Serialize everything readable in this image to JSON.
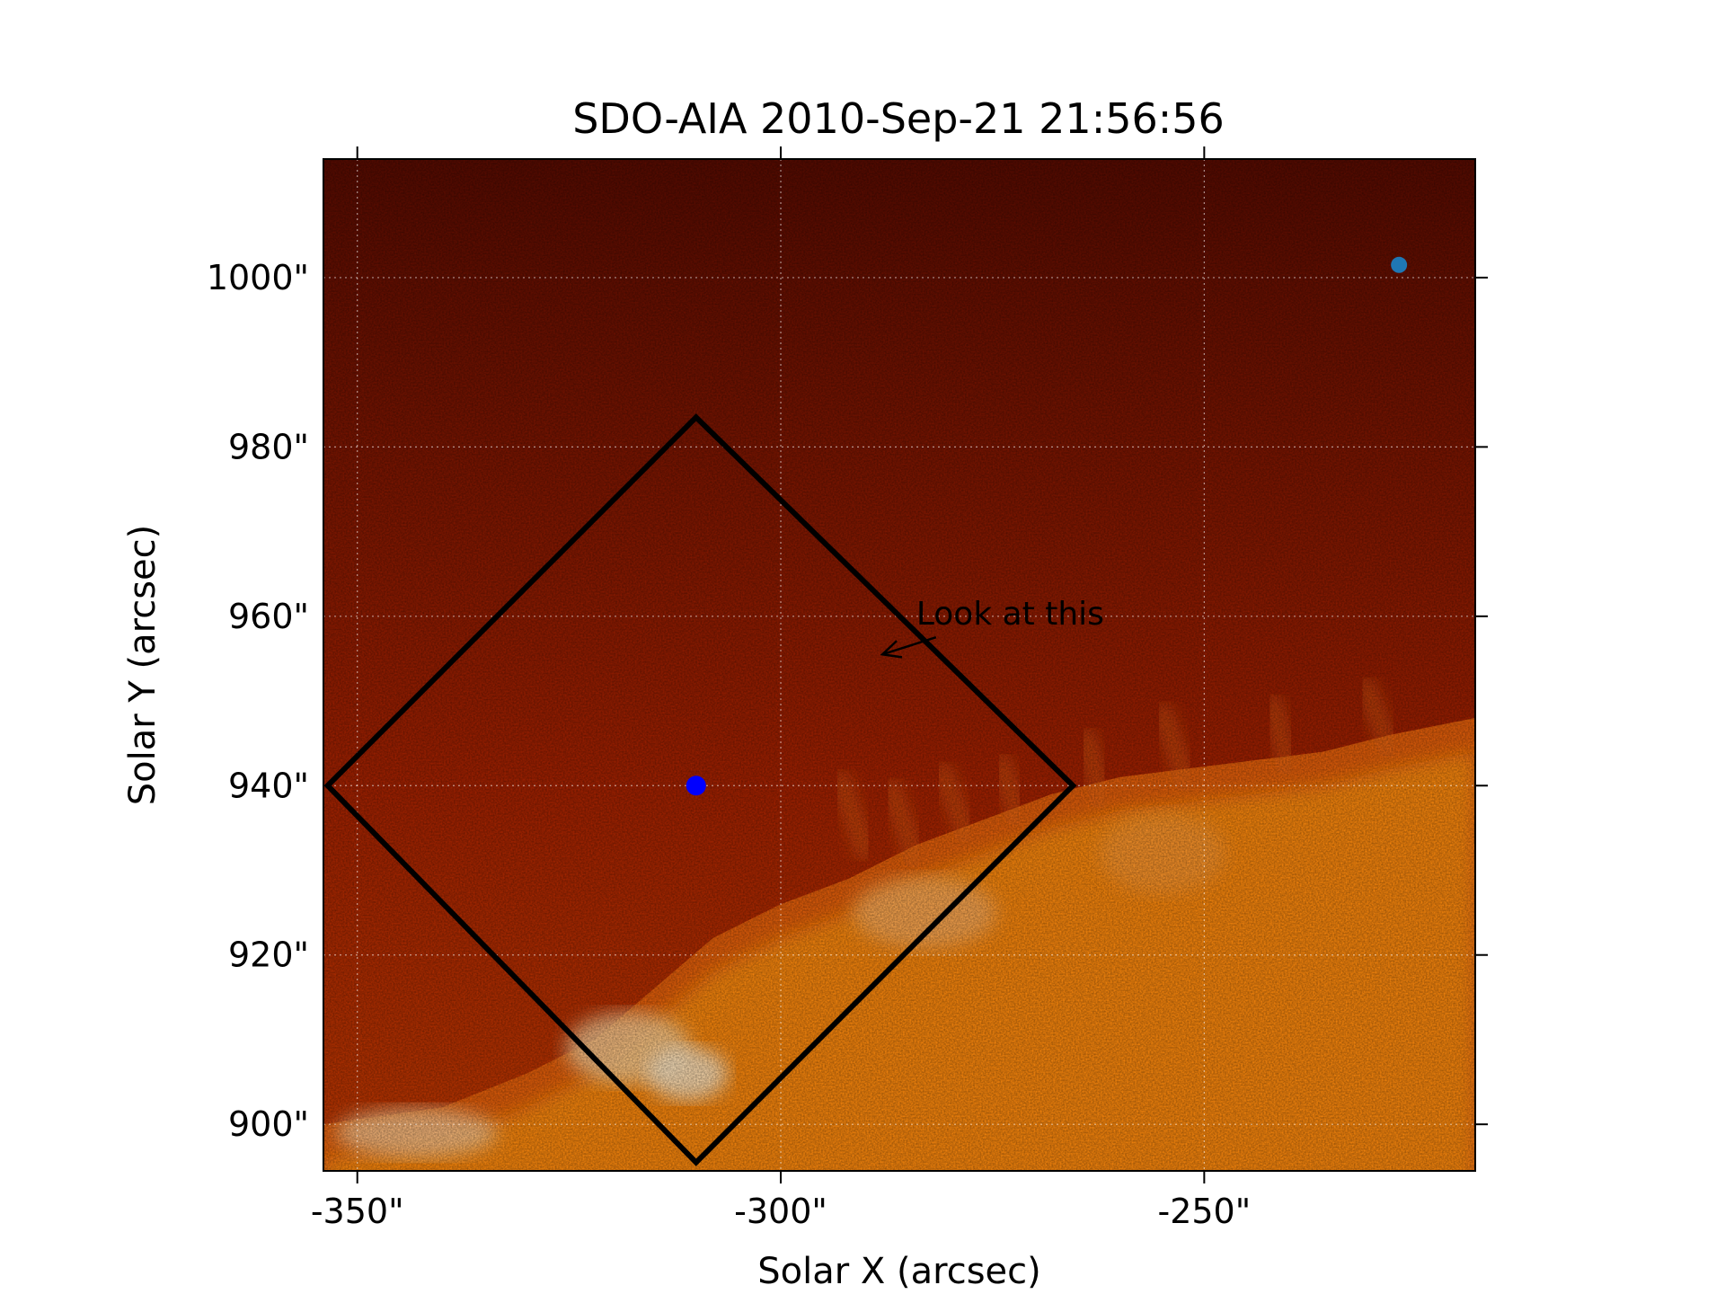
{
  "chart_data": {
    "type": "heatmap",
    "title": "SDO-AIA   2010-Sep-21 21:56:56",
    "xlabel": "Solar X (arcsec)",
    "ylabel": "Solar Y (arcsec)",
    "xlim": [
      -354,
      -218
    ],
    "ylim": [
      894.5,
      1014
    ],
    "x_ticks": [
      -350,
      -300,
      -250
    ],
    "x_tick_labels": [
      "-350\"",
      "-300\"",
      "-250\""
    ],
    "y_ticks": [
      900,
      920,
      940,
      960,
      980,
      1000
    ],
    "y_tick_labels": [
      "900\"",
      "920\"",
      "940\"",
      "960\"",
      "980\"",
      "1000\""
    ],
    "grid": true,
    "colormap": {
      "name": "sdoaia171",
      "dark": "#5a0b00",
      "mid": "#c43a00",
      "bright": "#ff8a10",
      "peak": "#fff2d8"
    },
    "markers": [
      {
        "x": -310,
        "y": 940,
        "color": "#0000ff",
        "size": "large"
      },
      {
        "x": -227,
        "y": 1001.5,
        "color": "#1f77b4",
        "size": "small"
      }
    ],
    "rectangle": {
      "corners": [
        [
          -310,
          983.5
        ],
        [
          -265.5,
          940
        ],
        [
          -310,
          895.5
        ],
        [
          -353.5,
          940
        ]
      ],
      "color": "#000000"
    },
    "annotation": {
      "text": "Look at this",
      "xy": [
        -288,
        955.5
      ],
      "xytext": [
        -284,
        959
      ]
    }
  }
}
